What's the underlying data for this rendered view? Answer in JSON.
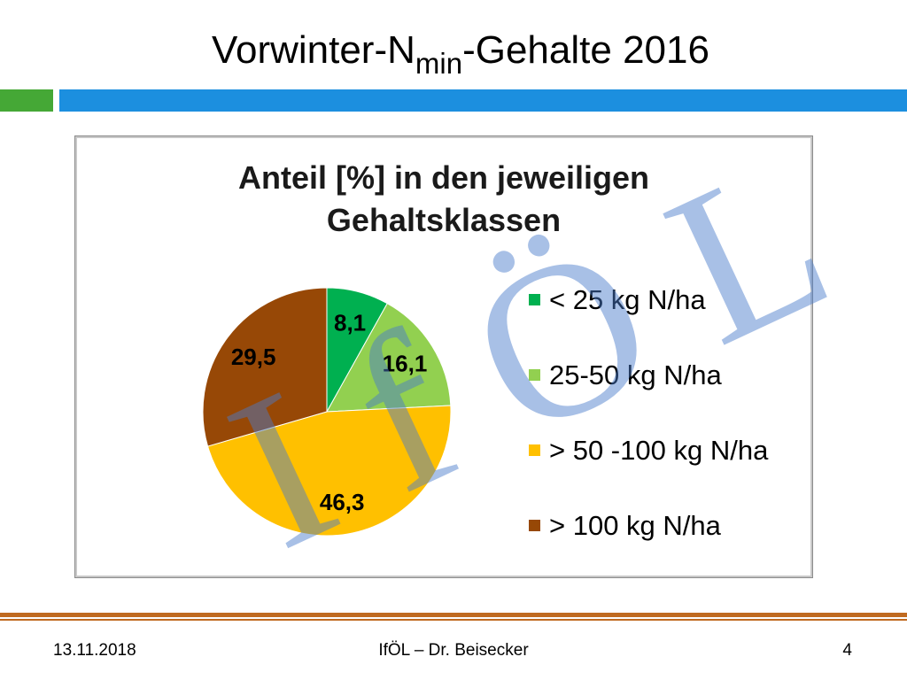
{
  "slide": {
    "title": {
      "main": "Vorwinter-N",
      "subscript": "min",
      "rest": "-Gehalte 2016"
    },
    "colors": {
      "header_green": "#45A836",
      "header_blue": "#1C8FDF",
      "footer_line": "#C06A20"
    }
  },
  "chart_data": {
    "type": "pie",
    "title_lines": [
      "Anteil [%] in den jeweiligen",
      "Gehaltsklassen"
    ],
    "categories": [
      "< 25 kg N/ha",
      "25-50 kg N/ha",
      "> 50 -100 kg N/ha",
      "> 100 kg N/ha"
    ],
    "values": [
      8.1,
      16.1,
      46.3,
      29.5
    ],
    "data_labels": [
      "8,1",
      "16,1",
      "46,3",
      "29,5"
    ],
    "colors": [
      "#00B050",
      "#92D050",
      "#FFC000",
      "#974806"
    ],
    "legend": "right"
  },
  "watermark": {
    "text": "IfÖL",
    "color": "#4A7BCB"
  },
  "footer": {
    "date": "13.11.2018",
    "presenter": "IfÖL – Dr. Beisecker",
    "page_number": "4"
  }
}
